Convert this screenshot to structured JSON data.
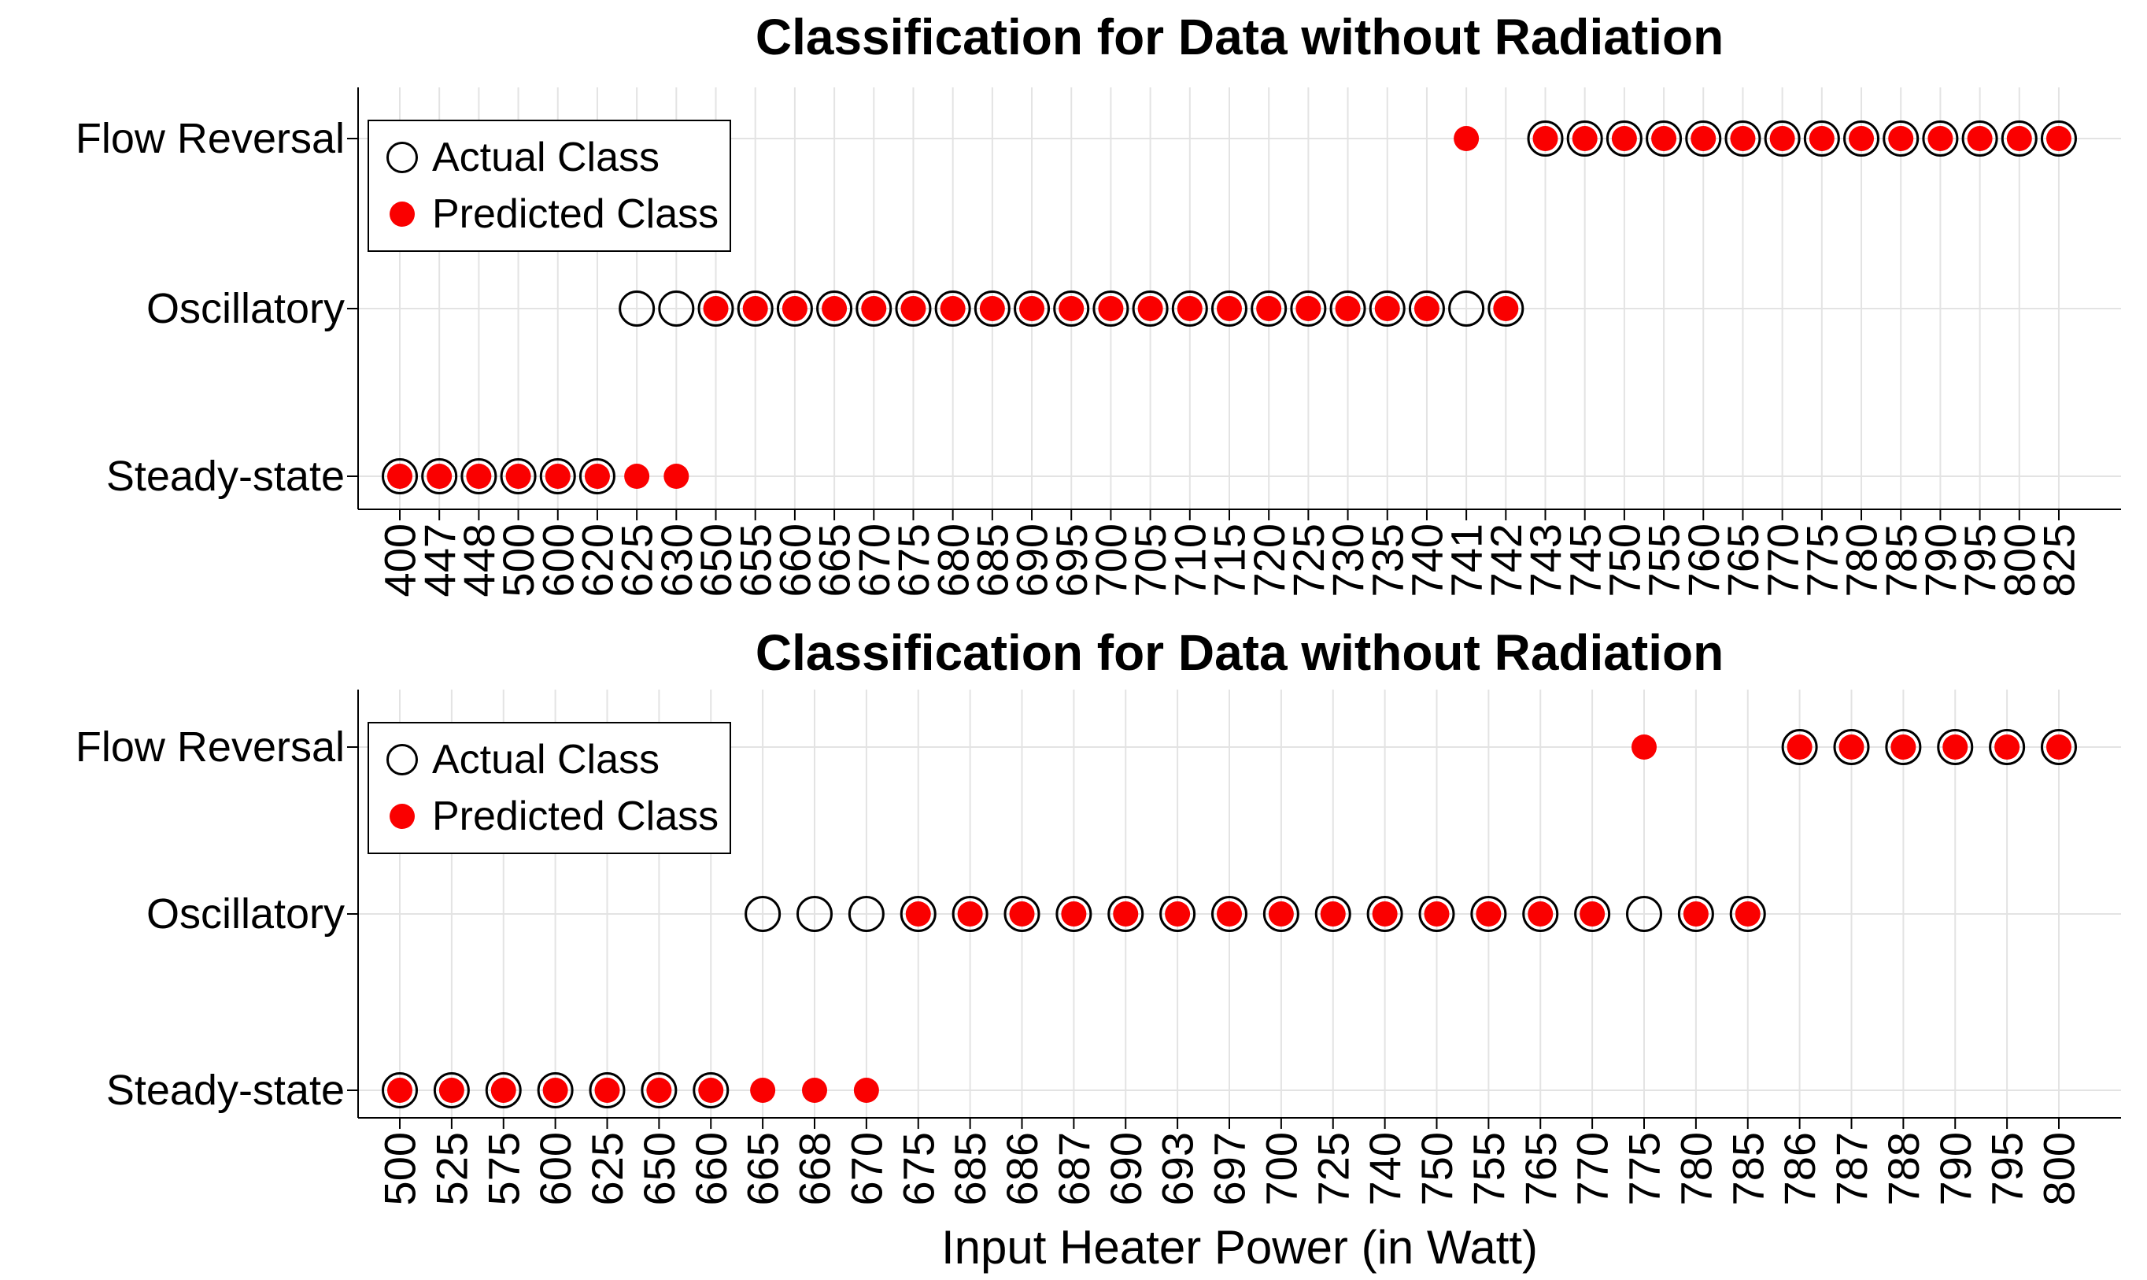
{
  "colors": {
    "predicted": "#fa0000",
    "actual_stroke": "#000000",
    "grid": "#e3e3e3",
    "axis": "#000000",
    "text": "#000000",
    "background": "#ffffff"
  },
  "xlabel": "Input Heater Power (in Watt)",
  "chart_data": [
    {
      "type": "scatter",
      "title": "Classification for Data without Radiation",
      "xlabel": "",
      "ylabel": "",
      "y_categories": [
        "Steady-state",
        "Oscillatory",
        "Flow Reversal"
      ],
      "categories": [
        "400",
        "447",
        "448",
        "500",
        "600",
        "620",
        "625",
        "630",
        "650",
        "655",
        "660",
        "665",
        "670",
        "675",
        "680",
        "685",
        "690",
        "695",
        "700",
        "705",
        "710",
        "715",
        "720",
        "725",
        "730",
        "735",
        "740",
        "741",
        "742",
        "743",
        "745",
        "750",
        "755",
        "760",
        "765",
        "770",
        "775",
        "780",
        "785",
        "790",
        "795",
        "800",
        "825"
      ],
      "class_map": {
        "S": "Steady-state",
        "O": "Oscillatory",
        "F": "Flow Reversal"
      },
      "series": [
        {
          "name": "Actual Class",
          "marker": "open-circle",
          "classes": [
            "S",
            "S",
            "S",
            "S",
            "S",
            "S",
            "O",
            "O",
            "O",
            "O",
            "O",
            "O",
            "O",
            "O",
            "O",
            "O",
            "O",
            "O",
            "O",
            "O",
            "O",
            "O",
            "O",
            "O",
            "O",
            "O",
            "O",
            "O",
            "O",
            "F",
            "F",
            "F",
            "F",
            "F",
            "F",
            "F",
            "F",
            "F",
            "F",
            "F",
            "F",
            "F",
            "F"
          ]
        },
        {
          "name": "Predicted Class",
          "marker": "filled-dot",
          "classes": [
            "S",
            "S",
            "S",
            "S",
            "S",
            "S",
            "S",
            "S",
            "O",
            "O",
            "O",
            "O",
            "O",
            "O",
            "O",
            "O",
            "O",
            "O",
            "O",
            "O",
            "O",
            "O",
            "O",
            "O",
            "O",
            "O",
            "O",
            "F",
            "O",
            "F",
            "F",
            "F",
            "F",
            "F",
            "F",
            "F",
            "F",
            "F",
            "F",
            "F",
            "F",
            "F",
            "F"
          ]
        }
      ],
      "legend_position": "top-left",
      "grid": "on"
    },
    {
      "type": "scatter",
      "title": "Classification for Data without Radiation",
      "xlabel": "Input Heater Power (in Watt)",
      "ylabel": "",
      "y_categories": [
        "Steady-state",
        "Oscillatory",
        "Flow Reversal"
      ],
      "categories": [
        "500",
        "525",
        "575",
        "600",
        "625",
        "650",
        "660",
        "665",
        "668",
        "670",
        "675",
        "685",
        "686",
        "687",
        "690",
        "693",
        "697",
        "700",
        "725",
        "740",
        "750",
        "755",
        "765",
        "770",
        "775",
        "780",
        "785",
        "786",
        "787",
        "788",
        "790",
        "795",
        "800"
      ],
      "class_map": {
        "S": "Steady-state",
        "O": "Oscillatory",
        "F": "Flow Reversal"
      },
      "series": [
        {
          "name": "Actual Class",
          "marker": "open-circle",
          "classes": [
            "S",
            "S",
            "S",
            "S",
            "S",
            "S",
            "S",
            "O",
            "O",
            "O",
            "O",
            "O",
            "O",
            "O",
            "O",
            "O",
            "O",
            "O",
            "O",
            "O",
            "O",
            "O",
            "O",
            "O",
            "O",
            "O",
            "O",
            "F",
            "F",
            "F",
            "F",
            "F",
            "F"
          ]
        },
        {
          "name": "Predicted Class",
          "marker": "filled-dot",
          "classes": [
            "S",
            "S",
            "S",
            "S",
            "S",
            "S",
            "S",
            "S",
            "S",
            "S",
            "O",
            "O",
            "O",
            "O",
            "O",
            "O",
            "O",
            "O",
            "O",
            "O",
            "O",
            "O",
            "O",
            "O",
            "F",
            "O",
            "O",
            "F",
            "F",
            "F",
            "F",
            "F",
            "F"
          ]
        }
      ],
      "legend_position": "top-left",
      "grid": "on"
    }
  ]
}
